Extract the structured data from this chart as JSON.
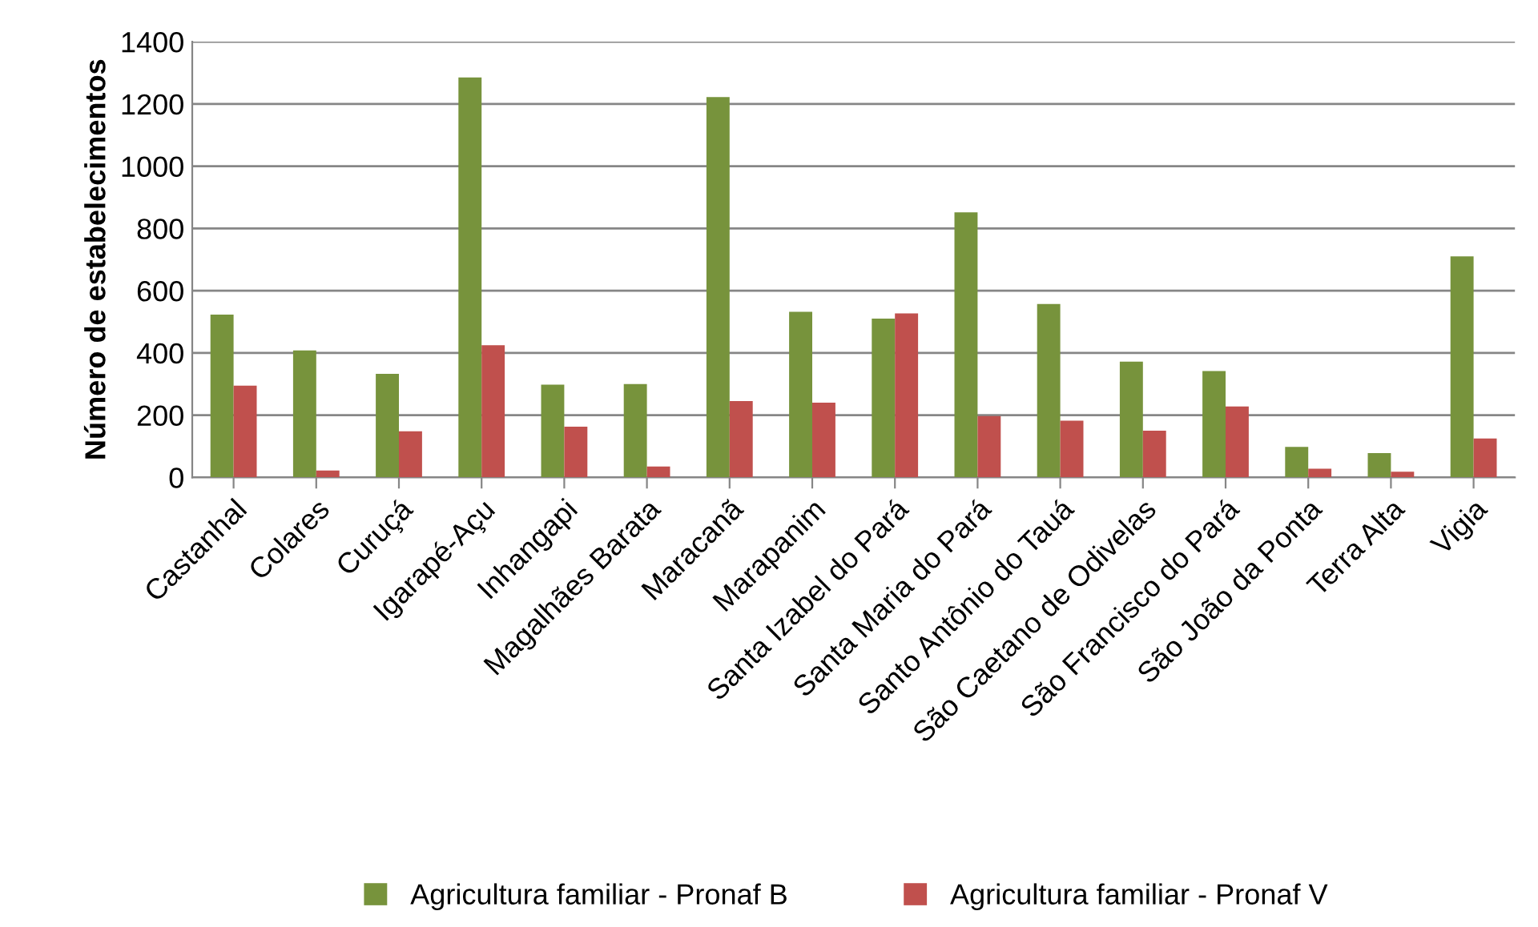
{
  "chart_data": {
    "type": "bar",
    "ylabel": "Número de estabelecimentos",
    "categories": [
      "Castanhal",
      "Colares",
      "Curuçá",
      "Igarapé-Açu",
      "Inhangapi",
      "Magalhães Barata",
      "Maracanã",
      "Marapanim",
      "Santa Izabel do Pará",
      "Santa Maria do Pará",
      "Santo Antônio do Tauá",
      "São Caetano de Odivelas",
      "São Francisco do Pará",
      "São João da Ponta",
      "Terra Alta",
      "Vigia"
    ],
    "series": [
      {
        "name": "Agricultura familiar - Pronaf B",
        "color": "#77933c",
        "values": [
          523,
          408,
          333,
          1285,
          298,
          300,
          1222,
          532,
          510,
          852,
          557,
          372,
          342,
          98,
          78,
          710
        ]
      },
      {
        "name": "Agricultura familiar - Pronaf V",
        "color": "#c0504d",
        "values": [
          295,
          22,
          148,
          425,
          163,
          35,
          245,
          240,
          527,
          197,
          182,
          150,
          228,
          28,
          18,
          125
        ]
      }
    ],
    "ylim": [
      0,
      1400
    ],
    "yticks": [
      0,
      200,
      400,
      600,
      800,
      1000,
      1200,
      1400
    ],
    "grid": "y",
    "legend": "bottom"
  }
}
